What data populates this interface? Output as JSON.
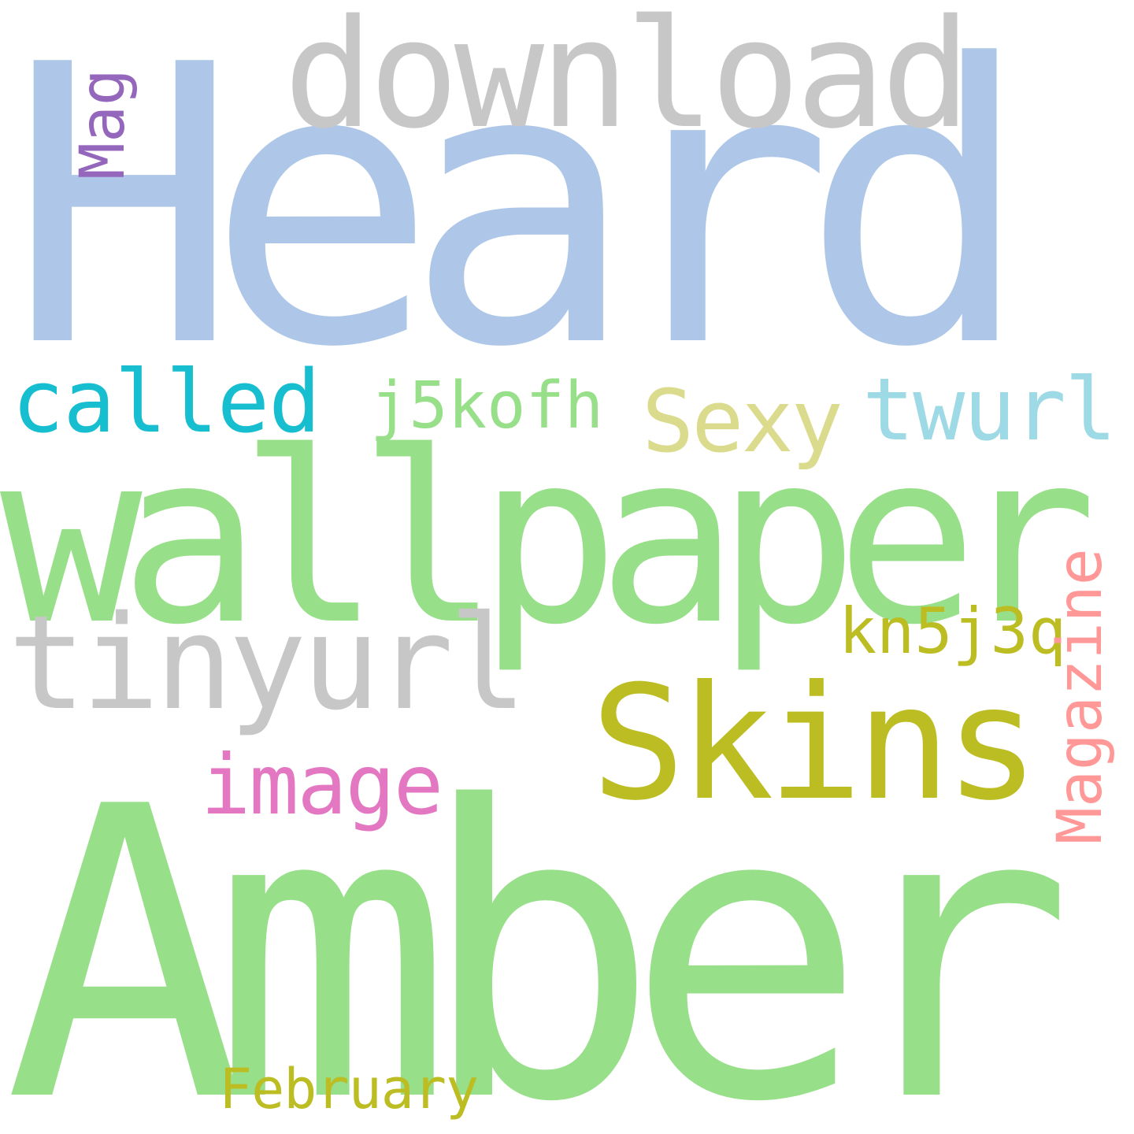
{
  "words": [
    {
      "id": "heard",
      "text": "Heard",
      "color": "#aec7e8"
    },
    {
      "id": "amber",
      "text": "Amber",
      "color": "#98df8a"
    },
    {
      "id": "wallpaper",
      "text": "wallpaper",
      "color": "#98df8a"
    },
    {
      "id": "download",
      "text": "download",
      "color": "#c7c7c7"
    },
    {
      "id": "tinyurl",
      "text": "tinyurl",
      "color": "#c7c7c7"
    },
    {
      "id": "skins",
      "text": "Skins",
      "color": "#bcbd22"
    },
    {
      "id": "called",
      "text": "called",
      "color": "#17becf"
    },
    {
      "id": "j5kofh",
      "text": "j5kofh",
      "color": "#98df8a"
    },
    {
      "id": "sexy",
      "text": "Sexy",
      "color": "#dbdb8d"
    },
    {
      "id": "twurl",
      "text": "twurl",
      "color": "#9edae5"
    },
    {
      "id": "kn5j3q",
      "text": "kn5j3q",
      "color": "#bcbd22"
    },
    {
      "id": "image",
      "text": "image",
      "color": "#e377c2"
    },
    {
      "id": "february",
      "text": "February",
      "color": "#bcbd22"
    },
    {
      "id": "mag",
      "text": "Mag",
      "color": "#9467bd"
    },
    {
      "id": "magazine",
      "text": "Magazine",
      "color": "#ff9896"
    }
  ]
}
